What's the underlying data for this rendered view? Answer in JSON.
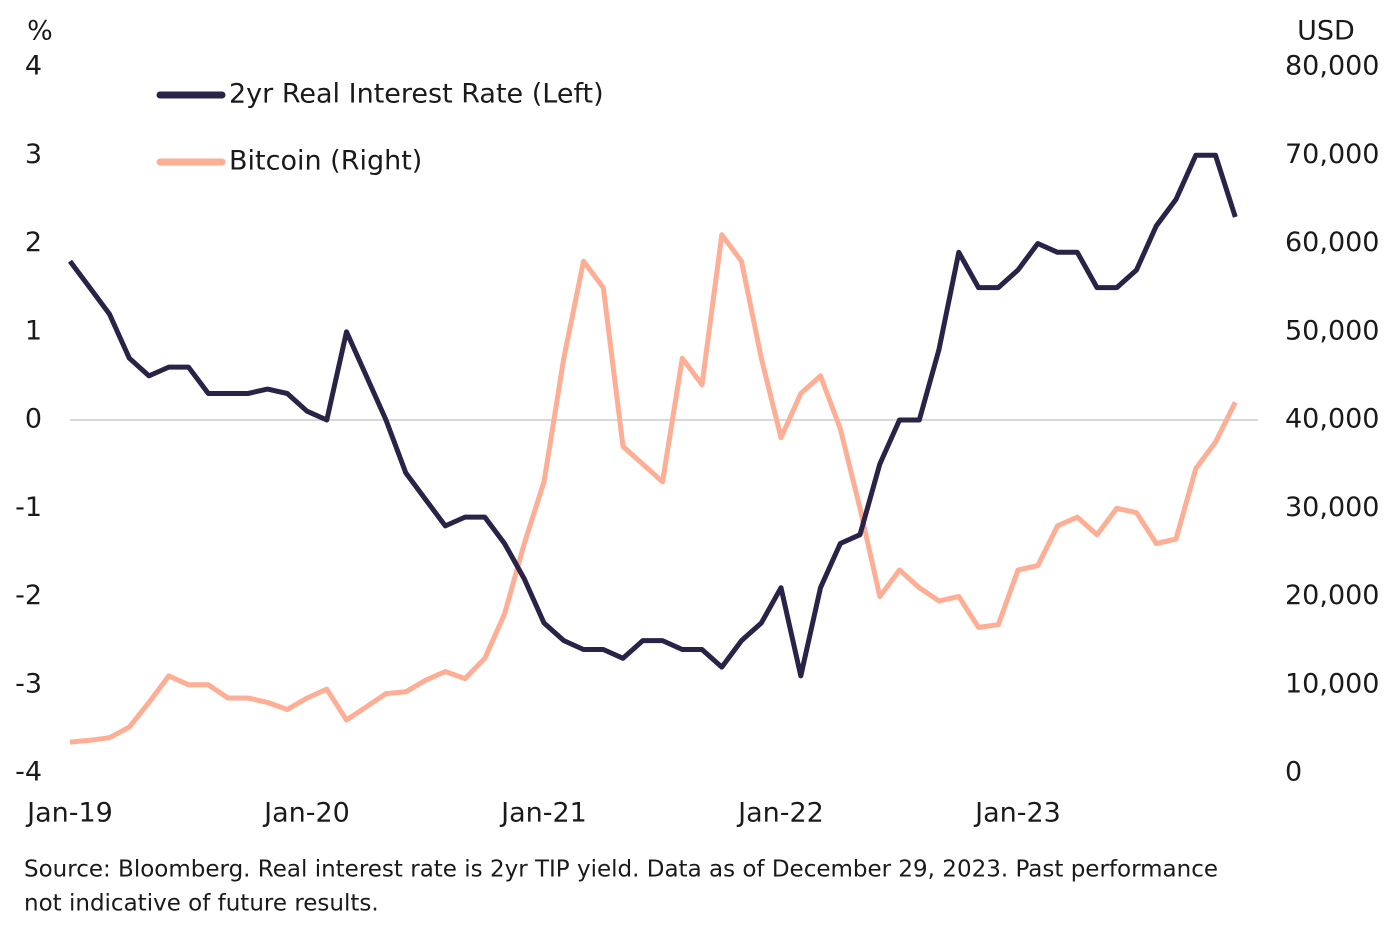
{
  "chart_data": {
    "type": "line",
    "y_label": "%",
    "y2_label": "USD",
    "ylim": [
      -4,
      4
    ],
    "yticks": [
      4,
      3,
      2,
      1,
      0,
      -1,
      -2,
      -3,
      -4
    ],
    "y2lim": [
      0,
      80000
    ],
    "y2ticks": [
      {
        "value": 80000,
        "label": "80,000"
      },
      {
        "value": 70000,
        "label": "70,000"
      },
      {
        "value": 60000,
        "label": "60,000"
      },
      {
        "value": 50000,
        "label": "50,000"
      },
      {
        "value": 40000,
        "label": "40,000"
      },
      {
        "value": 30000,
        "label": "30,000"
      },
      {
        "value": 20000,
        "label": "20,000"
      },
      {
        "value": 10000,
        "label": "10,000"
      },
      0
    ],
    "zero_line": true,
    "legend": "top-left",
    "categories": [
      "Jan-19",
      null,
      null,
      null,
      null,
      null,
      null,
      null,
      null,
      null,
      null,
      null,
      "Jan-20",
      null,
      null,
      null,
      null,
      null,
      null,
      null,
      null,
      null,
      null,
      null,
      "Jan-21",
      null,
      null,
      null,
      null,
      null,
      null,
      null,
      null,
      null,
      null,
      null,
      "Jan-22",
      null,
      null,
      null,
      null,
      null,
      null,
      null,
      null,
      null,
      null,
      null,
      "Jan-23",
      null,
      null,
      null,
      null,
      null,
      null,
      null,
      null,
      null,
      null,
      null
    ],
    "series": [
      {
        "name": "2yr Real Interest Rate (Left)",
        "color": "#2a2347",
        "axis": "y",
        "values": [
          1.8,
          1.5,
          1.2,
          0.7,
          0.5,
          0.6,
          0.6,
          0.3,
          0.3,
          0.3,
          0.35,
          0.3,
          0.1,
          0.0,
          1.0,
          0.5,
          0.0,
          -0.6,
          -0.9,
          -1.2,
          -1.1,
          -1.1,
          -1.4,
          -1.8,
          -2.3,
          -2.5,
          -2.6,
          -2.6,
          -2.7,
          -2.5,
          -2.5,
          -2.6,
          -2.6,
          -2.8,
          -2.5,
          -2.3,
          -1.9,
          -2.9,
          -1.9,
          -1.4,
          -1.3,
          -0.5,
          0.0,
          0.0,
          0.8,
          1.9,
          1.5,
          1.5,
          1.7,
          2.0,
          1.9,
          1.9,
          1.5,
          1.5,
          1.7,
          2.2,
          2.5,
          3.0,
          3.0,
          2.3
        ]
      },
      {
        "name": "Bitcoin (Right)",
        "color": "#fdae95",
        "axis": "y2",
        "values": [
          3500,
          3700,
          4000,
          5200,
          8000,
          11000,
          10000,
          10000,
          8500,
          8500,
          8000,
          7200,
          8500,
          9500,
          6000,
          7500,
          9000,
          9200,
          10500,
          11500,
          10700,
          13000,
          18000,
          26000,
          33000,
          47000,
          58000,
          55000,
          37000,
          35000,
          33000,
          47000,
          44000,
          61000,
          58000,
          47000,
          38000,
          43000,
          45000,
          39000,
          30000,
          20000,
          23000,
          21000,
          19500,
          20000,
          16500,
          16800,
          23000,
          23500,
          28000,
          29000,
          27000,
          30000,
          29500,
          26000,
          26500,
          34500,
          37500,
          42000
        ]
      }
    ],
    "source": "Source: Bloomberg. Real interest rate is 2yr TIP yield. Data as of December 29, 2023. Past performance",
    "source_line2": "not indicative of future results."
  }
}
